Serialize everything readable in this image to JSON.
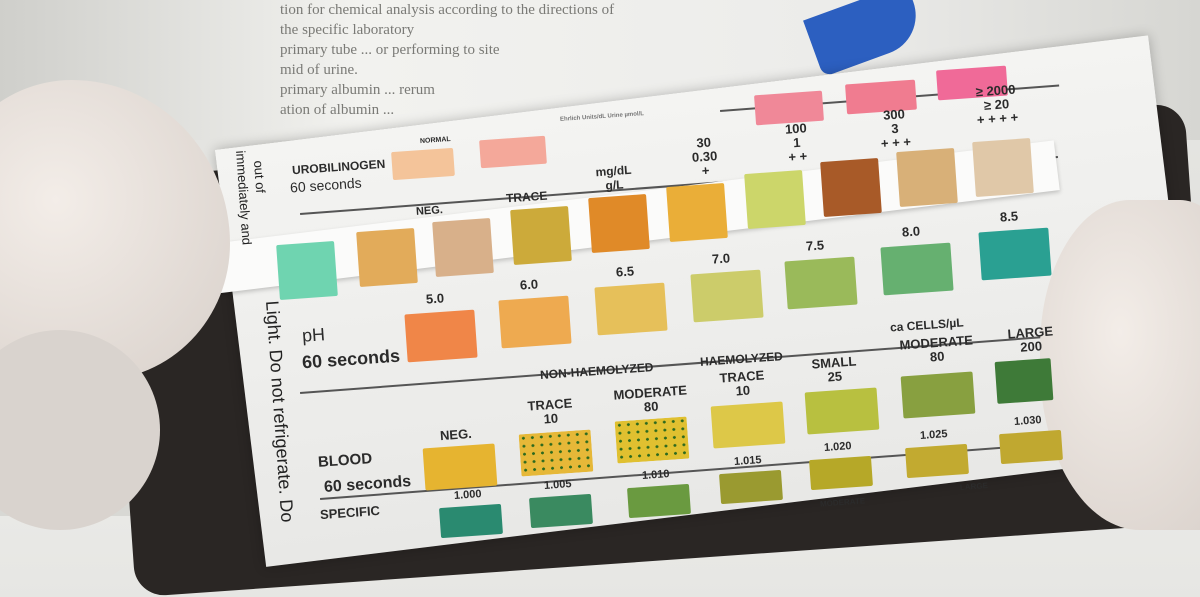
{
  "book_text": [
    "tion for chemical analysis according to the directions of",
    "the specific laboratory",
    "primary tube ... or performing to site",
    "mid of urine.",
    "primary albumin ... rerum",
    "ation of albumin ..."
  ],
  "urobilinogen": {
    "title": "UROBILINOGEN",
    "time": "60 seconds",
    "normal": "NORMAL",
    "unit_header": "Ehrlich Units/dL Urine µmol/L",
    "levels": [
      "≥ 2000\n≥ 20\n+ + + +",
      "300\n3\n+ + +",
      "100\n1\n+ +",
      "30\n0.30\n+",
      "mg/dL\ng/L",
      "TRACE",
      "NEG."
    ]
  },
  "ph": {
    "title": "pH",
    "time": "60 seconds",
    "values": [
      "5.0",
      "6.0",
      "6.5",
      "7.0",
      "7.5",
      "8.0",
      "8.5"
    ]
  },
  "blood": {
    "title": "BLOOD",
    "time": "60 seconds",
    "group1": "NON-HAEMOLYZED",
    "group2": "HAEMOLYZED",
    "unit": "ca CELLS/µL",
    "levels": [
      "NEG.",
      "TRACE\n10",
      "MODERATE\n80",
      "TRACE\n10",
      "SMALL\n25",
      "MODERATE\n80",
      "LARGE\n200"
    ]
  },
  "specific_gravity": {
    "title": "SPECIFIC",
    "values": [
      "1.000",
      "1.005",
      "1.010",
      "1.015",
      "1.020",
      "1.025",
      "1.030"
    ],
    "extra": [
      "MODERATE",
      "LARGE"
    ]
  },
  "side_text": [
    "Light. Do not refrigerate. Do",
    "immediately and",
    "out of"
  ],
  "colors": {
    "strip_pads": [
      "#6fd4b0",
      "#e2ab5a",
      "#d8b08a",
      "#ccaa3a",
      "#e08a28",
      "#eaae38",
      "#ccd66a",
      "#a85a28",
      "#d8b078",
      "#e0c8a8"
    ],
    "ph": [
      "#f08648",
      "#eeaa50",
      "#e6c05a",
      "#cccc6a",
      "#9aba5a",
      "#66b070",
      "#2aa092"
    ],
    "blood": [
      "#e6b430",
      "#e6b838",
      "#e0c030",
      "#ddc848",
      "#b8c040",
      "#88a040",
      "#3e7a38"
    ],
    "sg": [
      "#2a8a70",
      "#3a8a60",
      "#6a9a40",
      "#9a9a30",
      "#b6a828",
      "#c2aa30",
      "#c0a830"
    ]
  }
}
